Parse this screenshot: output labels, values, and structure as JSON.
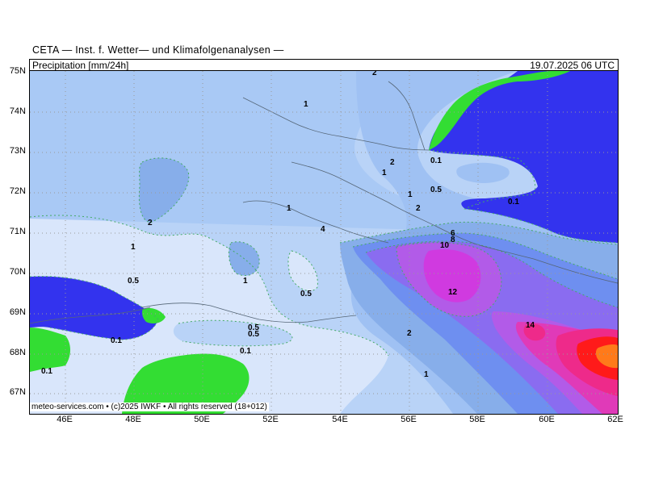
{
  "header": {
    "title": "CETA — Inst. f. Wetter— und Klimafolgenanalysen —",
    "product": "Precipitation [mm/24h]",
    "datetime": "19.07.2025 06 UTC"
  },
  "axes": {
    "lat_labels": [
      "75N",
      "74N",
      "73N",
      "72N",
      "71N",
      "70N",
      "69N",
      "68N",
      "67N"
    ],
    "lon_labels": [
      "46E",
      "48E",
      "50E",
      "52E",
      "54E",
      "56E",
      "58E",
      "60E",
      "62E"
    ]
  },
  "contour_labels": [
    "2",
    "1",
    "2",
    "1",
    "2",
    "0.1",
    "0.5",
    "1",
    "2",
    "1",
    "0.1",
    "4",
    "6",
    "8",
    "10",
    "1",
    "0.5",
    "1",
    "12",
    "0.5",
    "14",
    "0.5",
    "0.5",
    "2",
    "0.1",
    "0.1",
    "0.1",
    "1"
  ],
  "footer": {
    "text": "meteo-services.com • (c)2025 IWKF • All rights reserved (18+012)"
  },
  "colors": {
    "precip_0_1": "#d9e6fb",
    "precip_0_5": "#b9d3f7",
    "precip_1": "#9fc1f3",
    "precip_2": "#87aeea",
    "precip_4": "#6e8ff0",
    "precip_6": "#8a6cf0",
    "precip_8": "#b25be8",
    "precip_10": "#d03ae0",
    "precip_12": "#e03ab8",
    "precip_14": "#ee2a8a",
    "precip_heavy": "#ff1a1a",
    "precip_peak": "#ff7a1a",
    "dry": "#3333ee",
    "land_mask": "#33dd33"
  }
}
